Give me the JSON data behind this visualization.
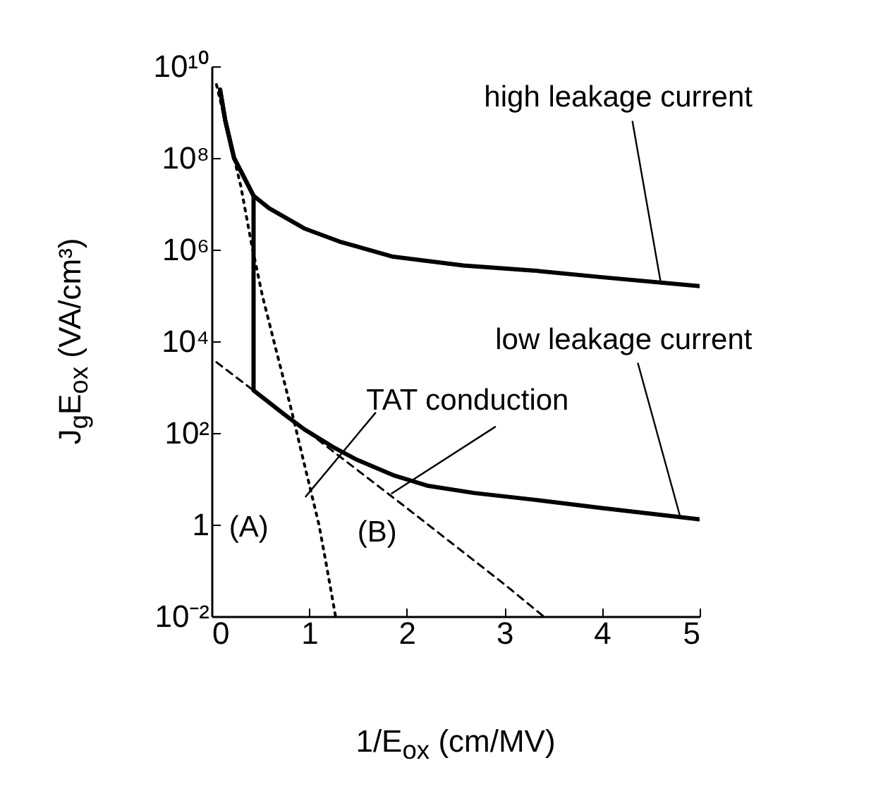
{
  "chart_data": {
    "type": "line",
    "xlabel": "1/E$_{ox}$  (cm/MV)",
    "ylabel": "J$_{g}$E$_{ox}$  (VA/cm³)",
    "log": "y",
    "grid": false,
    "marker": "none",
    "xlim": [
      0,
      5
    ],
    "xticks": [
      0,
      1,
      2,
      3,
      4,
      5
    ],
    "ylim": [
      0.01,
      10000000000
    ],
    "yticks": [
      {
        "value": 0.01,
        "label": "10⁻²"
      },
      {
        "value": 1,
        "label": "1"
      },
      {
        "value": 100,
        "label": "10²"
      },
      {
        "value": 10000,
        "label": "10⁴"
      },
      {
        "value": 1000000,
        "label": "10⁶"
      },
      {
        "value": 100000000,
        "label": "10⁸"
      },
      {
        "value": 10000000000,
        "label": "10¹⁰"
      }
    ],
    "series": [
      {
        "color": "#000000",
        "line_style": "solid",
        "x": [
          0.087,
          0.14,
          0.23,
          0.43,
          0.59,
          0.95,
          1.31,
          1.86,
          2.58,
          3.3,
          4.0,
          5.0
        ],
        "values": [
          3100000000,
          660000000,
          100000000,
          15000000,
          8000000,
          2900000,
          1500000,
          700000,
          450000,
          350000,
          250000,
          160000
        ]
      },
      {
        "color": "#000000",
        "line_style": "solid",
        "x": [
          0.087,
          0.14,
          0.23,
          0.43,
          0.43,
          0.59,
          0.74,
          0.95,
          1.24,
          1.49,
          1.86,
          2.22,
          2.69,
          3.3,
          4.0,
          5.0
        ],
        "values": [
          3100000000,
          660000000,
          100000000,
          15000000,
          850,
          460,
          260,
          120,
          50,
          26,
          12,
          7,
          4.9,
          3.5,
          2.3,
          1.3
        ]
      },
      {
        "color": "#000000",
        "line_style": "dotted",
        "x": [
          0.05,
          0.3,
          0.41,
          0.52,
          0.66,
          0.81,
          0.95,
          1.1,
          1.18,
          1.27
        ],
        "values": [
          4000000000,
          24000000,
          1300000,
          100000,
          6600,
          370,
          21,
          1,
          0.12,
          0.01
        ]
      },
      {
        "color": "#000000",
        "line_style": "dashed",
        "x": [
          0.05,
          1.0,
          2.0,
          3.0,
          3.4
        ],
        "values": [
          3500,
          100,
          2.3,
          0.05,
          0.01
        ]
      }
    ],
    "annotations": [
      {
        "text": "high leakage current",
        "x": 4.6,
        "y": 200000
      },
      {
        "text": "low leakage current",
        "x": 4.8,
        "y": 1.5
      },
      {
        "text": "TAT conduction",
        "x": 0.96,
        "y": 4
      },
      {
        "text": "(A)",
        "x": 0.96,
        "y": 4
      },
      {
        "text": "(B)",
        "x": 1.84,
        "y": 4.7
      }
    ]
  }
}
